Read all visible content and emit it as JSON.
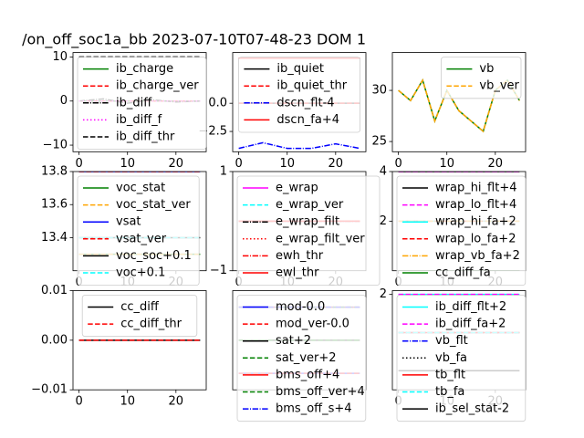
{
  "suptitle": "/on_off_soc1a_bb   2023-07-10T07-48-23 DOM 1",
  "chart_data": [
    {
      "type": "line",
      "x": [
        0,
        5,
        10,
        15,
        20,
        25
      ],
      "xlim": [
        -1.25,
        26.25
      ],
      "xticks": [
        0,
        10,
        20
      ],
      "ylim": [
        -11.5,
        11
      ],
      "yticks": [
        {
          "value": -10,
          "label": "−10"
        },
        0,
        10
      ],
      "legend": "upper left",
      "series": [
        {
          "name": "ib_charge",
          "color": "#008000",
          "style": "solid",
          "values": [
            0,
            0,
            0,
            0,
            0,
            0
          ]
        },
        {
          "name": "ib_charge_ver",
          "color": "#ff0000",
          "style": "dashed",
          "values": [
            0,
            0,
            0,
            0,
            0,
            0
          ]
        },
        {
          "name": "ib_diff",
          "color": "#000000",
          "style": "dashdot",
          "values": [
            0,
            0.5,
            -0.5,
            0.3,
            -0.2,
            0
          ]
        },
        {
          "name": "ib_diff_f",
          "color": "#ff00ff",
          "style": "dotted",
          "values": [
            0,
            0,
            0,
            0,
            0,
            0
          ]
        },
        {
          "name": "ib_diff_thr",
          "color": "#000000",
          "style": "dashed",
          "values": [
            10,
            10,
            10,
            10,
            10,
            10
          ]
        }
      ]
    },
    {
      "type": "line",
      "x": [
        0,
        5,
        10,
        15,
        20,
        25
      ],
      "xlim": [
        -1.25,
        26.25
      ],
      "xticks": [
        0,
        10,
        20
      ],
      "ylim": [
        -4.3,
        4.5
      ],
      "yticks": [
        {
          "value": -2.5,
          "label": "−2.5"
        },
        {
          "value": 0,
          "label": "0.0"
        }
      ],
      "legend": "upper center",
      "series": [
        {
          "name": "ib_quiet",
          "color": "#000000",
          "style": "solid",
          "values": [
            0,
            0,
            0,
            0,
            0,
            0
          ]
        },
        {
          "name": "ib_quiet_thr",
          "color": "#ff0000",
          "style": "dashed",
          "values": [
            0,
            0,
            0,
            0,
            0,
            0
          ]
        },
        {
          "name": "dscn_flt-4",
          "color": "#0000ff",
          "style": "dashdot",
          "values": [
            -4,
            -3.5,
            -4,
            -4,
            -3.6,
            -4
          ]
        },
        {
          "name": "dscn_fa+4",
          "color": "#ff0000",
          "style": "solid",
          "values": [
            4,
            4,
            4,
            4,
            4,
            4
          ]
        }
      ]
    },
    {
      "type": "line",
      "x": [
        0,
        2.5,
        5,
        7.5,
        10,
        12.5,
        15,
        17.5,
        20,
        22.5,
        25
      ],
      "xlim": [
        -1.25,
        26.25
      ],
      "xticks": [
        0,
        10,
        20
      ],
      "ylim": [
        24,
        33.7
      ],
      "yticks": [
        25,
        30
      ],
      "legend": "upper right",
      "series": [
        {
          "name": "vb",
          "color": "#008000",
          "style": "solid",
          "values": [
            30,
            29,
            31,
            27,
            30,
            28,
            27,
            26,
            30,
            31,
            29
          ]
        },
        {
          "name": "vb_ver",
          "color": "#ffa500",
          "style": "dashed",
          "values": [
            30,
            29,
            31,
            27,
            30,
            28,
            27,
            26,
            30,
            31,
            29
          ]
        }
      ]
    },
    {
      "type": "line",
      "x": [
        0,
        5,
        10,
        15,
        20,
        25
      ],
      "xlim": [
        -1.25,
        26.25
      ],
      "xticks": [
        0,
        10,
        20
      ],
      "ylim": [
        13.2,
        13.8
      ],
      "yticks": [
        13.4,
        13.6,
        13.8
      ],
      "legend": "upper left",
      "series": [
        {
          "name": "voc_stat",
          "color": "#008000",
          "style": "solid",
          "values": [
            13.3,
            13.3,
            13.3,
            13.3,
            13.3,
            13.3
          ]
        },
        {
          "name": "voc_stat_ver",
          "color": "#ffa500",
          "style": "dashed",
          "values": [
            13.3,
            13.3,
            13.3,
            13.3,
            13.3,
            13.3
          ]
        },
        {
          "name": "vsat",
          "color": "#0000ff",
          "style": "solid",
          "values": [
            13.8,
            13.8,
            13.8,
            13.8,
            13.8,
            13.8
          ]
        },
        {
          "name": "vsat_ver",
          "color": "#ff0000",
          "style": "dashed",
          "values": [
            13.8,
            13.8,
            13.8,
            13.8,
            13.8,
            13.8
          ]
        },
        {
          "name": "voc_soc+0.1",
          "color": "#000000",
          "style": "solid",
          "values": [
            13.4,
            13.4,
            13.4,
            13.4,
            13.4,
            13.4
          ]
        },
        {
          "name": "voc+0.1",
          "color": "#00ffff",
          "style": "dashed",
          "values": [
            13.4,
            13.4,
            13.4,
            13.4,
            13.4,
            13.4
          ]
        }
      ]
    },
    {
      "type": "line",
      "x": [
        0,
        5,
        10,
        15,
        20,
        25
      ],
      "xlim": [
        -1.25,
        26.25
      ],
      "xticks": [
        0,
        10,
        20
      ],
      "ylim": [
        -1,
        1
      ],
      "yticks": [
        {
          "value": -1,
          "label": "−1"
        },
        1
      ],
      "legend": "upper left",
      "series": [
        {
          "name": "e_wrap",
          "color": "#ff00ff",
          "style": "solid",
          "values": [
            0,
            0,
            0,
            0,
            0,
            0
          ]
        },
        {
          "name": "e_wrap_ver",
          "color": "#00ffff",
          "style": "dashed",
          "values": [
            0,
            0,
            0,
            0,
            0,
            0
          ]
        },
        {
          "name": "e_wrap_filt",
          "color": "#000000",
          "style": "dashdot",
          "values": [
            0,
            0,
            0,
            0,
            0,
            0
          ]
        },
        {
          "name": "e_wrap_filt_ver",
          "color": "#ff0000",
          "style": "dotted",
          "values": [
            0,
            0,
            0,
            0,
            0,
            0
          ]
        },
        {
          "name": "ewh_thr",
          "color": "#ff0000",
          "style": "dashdot",
          "values": [
            0,
            0,
            0,
            0,
            0,
            0
          ]
        },
        {
          "name": "ewl_thr",
          "color": "#ff0000",
          "style": "solid",
          "values": [
            0,
            0,
            0,
            0,
            0,
            0
          ]
        }
      ]
    },
    {
      "type": "line",
      "x": [
        0,
        5,
        10,
        15,
        20,
        25
      ],
      "xlim": [
        -1.25,
        26.25
      ],
      "xticks": [
        0,
        10,
        20
      ],
      "ylim": [
        0,
        4
      ],
      "yticks": [
        2,
        4
      ],
      "legend": "upper left",
      "series": [
        {
          "name": "wrap_hi_flt+4",
          "color": "#000000",
          "style": "solid",
          "values": [
            4,
            4,
            4,
            4,
            4,
            4
          ]
        },
        {
          "name": "wrap_lo_flt+4",
          "color": "#ff00ff",
          "style": "dashed",
          "values": [
            4,
            4,
            4,
            4,
            4,
            4
          ]
        },
        {
          "name": "wrap_hi_fa+2",
          "color": "#00ffff",
          "style": "solid",
          "values": [
            2,
            2,
            2,
            2,
            2,
            2
          ]
        },
        {
          "name": "wrap_lo_fa+2",
          "color": "#ff0000",
          "style": "dashed",
          "values": [
            2,
            2,
            2,
            2,
            2,
            2
          ]
        },
        {
          "name": "wrap_vb_fa+2",
          "color": "#ffa500",
          "style": "dashdot",
          "values": [
            2,
            2,
            2,
            2,
            2,
            2
          ]
        },
        {
          "name": "cc_diff_fa",
          "color": "#008000",
          "style": "solid",
          "values": [
            0,
            0,
            0,
            0,
            0,
            0
          ]
        }
      ]
    },
    {
      "type": "line",
      "x": [
        0,
        5,
        10,
        15,
        20,
        25
      ],
      "xlim": [
        -1.25,
        26.25
      ],
      "xticks": [
        0,
        10,
        20
      ],
      "ylim": [
        -0.01,
        0.01
      ],
      "yticks": [
        {
          "value": -0.01,
          "label": "−0.01"
        },
        {
          "value": 0,
          "label": "0.00"
        },
        0.01
      ],
      "legend": "upper center",
      "series": [
        {
          "name": "cc_diff",
          "color": "#000000",
          "style": "solid",
          "values": [
            0,
            0,
            0,
            0,
            0,
            0
          ]
        },
        {
          "name": "cc_diff_thr",
          "color": "#ff0000",
          "style": "dashed",
          "values": [
            0,
            0,
            0,
            0,
            0,
            0
          ]
        }
      ]
    },
    {
      "type": "line",
      "x": [
        0,
        5,
        10,
        15,
        20,
        25
      ],
      "xlim": [
        -1.25,
        26.25
      ],
      "xticks": [],
      "ylim": [
        -1,
        5
      ],
      "yticks": [],
      "legend": "upper left",
      "series": [
        {
          "name": "mod-0.0",
          "color": "#0000ff",
          "style": "solid",
          "values": [
            0,
            0,
            0,
            0,
            0,
            0
          ]
        },
        {
          "name": "mod_ver-0.0",
          "color": "#ff0000",
          "style": "dashed",
          "values": [
            0,
            0,
            0,
            0,
            0,
            0
          ]
        },
        {
          "name": "sat+2",
          "color": "#000000",
          "style": "solid",
          "values": [
            2,
            2,
            2,
            2,
            2,
            2
          ]
        },
        {
          "name": "sat_ver+2",
          "color": "#008000",
          "style": "dashed",
          "values": [
            2,
            2,
            2,
            2,
            2,
            2
          ]
        },
        {
          "name": "bms_off+4",
          "color": "#ff0000",
          "style": "solid",
          "values": [
            4,
            4,
            4,
            4,
            4,
            4
          ]
        },
        {
          "name": "bms_off_ver+4",
          "color": "#008000",
          "style": "dashed",
          "values": [
            4,
            4,
            4,
            4,
            4,
            4
          ]
        },
        {
          "name": "bms_off_s+4",
          "color": "#0000ff",
          "style": "dashdot",
          "values": [
            4,
            4,
            4,
            4,
            4,
            4
          ]
        }
      ]
    },
    {
      "type": "line",
      "x": [
        0,
        5,
        10,
        15,
        20,
        25
      ],
      "xlim": [
        -1.25,
        26.25
      ],
      "xticks": [
        0,
        10,
        20
      ],
      "ylim": [
        -3,
        2.2
      ],
      "yticks": [
        2
      ],
      "legend": "upper left",
      "series": [
        {
          "name": "ib_diff_flt+2",
          "color": "#00ffff",
          "style": "solid",
          "values": [
            2,
            2,
            2,
            2,
            2,
            2
          ]
        },
        {
          "name": "ib_diff_fa+2",
          "color": "#ff00ff",
          "style": "dashed",
          "values": [
            2,
            2,
            2,
            2,
            2,
            2
          ]
        },
        {
          "name": "vb_flt",
          "color": "#0000ff",
          "style": "dashdot",
          "values": [
            0,
            0,
            0,
            0,
            0,
            0
          ]
        },
        {
          "name": "vb_fa",
          "color": "#000000",
          "style": "dotted",
          "values": [
            0,
            0,
            0,
            0,
            0,
            0
          ]
        },
        {
          "name": "tb_flt",
          "color": "#ff0000",
          "style": "solid",
          "values": [
            0,
            0,
            0,
            0,
            0,
            0
          ]
        },
        {
          "name": "tb_fa",
          "color": "#00ffff",
          "style": "dashed",
          "values": [
            0,
            0,
            0,
            0,
            0,
            0
          ]
        },
        {
          "name": "ib_sel_stat-2",
          "color": "#000000",
          "style": "solid",
          "values": [
            -2,
            -2,
            -2,
            -2,
            -2,
            -2
          ]
        }
      ]
    }
  ]
}
